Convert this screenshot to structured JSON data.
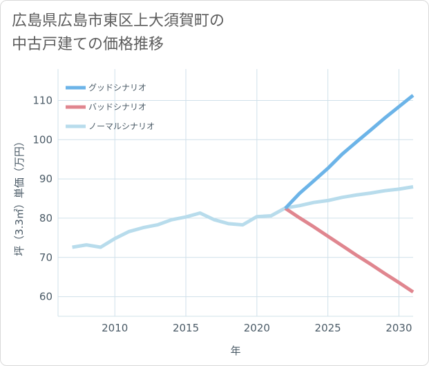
{
  "title_line1": "広島県広島市東区上大須賀町の",
  "title_line2": "中古戸建ての価格推移",
  "chart_data": {
    "type": "line",
    "title": "広島県広島市東区上大須賀町の中古戸建ての価格推移",
    "xlabel": "年",
    "ylabel": "坪（3.3㎡）単価（万円）",
    "xlim": [
      2006,
      2031
    ],
    "ylim": [
      55,
      118
    ],
    "xticks": [
      2010,
      2015,
      2020,
      2025,
      2030
    ],
    "yticks": [
      60,
      70,
      80,
      90,
      100,
      110
    ],
    "grid": true,
    "legend_position": "top-left",
    "series": [
      {
        "name": "グッドシナリオ",
        "color": "#6cb4e8",
        "x": [
          2022,
          2023,
          2024,
          2025,
          2026,
          2027,
          2028,
          2029,
          2030,
          2031
        ],
        "values": [
          82.5,
          86.3,
          89.5,
          92.7,
          96.3,
          99.4,
          102.4,
          105.5,
          108.4,
          111.3
        ]
      },
      {
        "name": "バッドシナリオ",
        "color": "#e0868f",
        "x": [
          2022,
          2023,
          2024,
          2025,
          2026,
          2027,
          2028,
          2029,
          2030,
          2031
        ],
        "values": [
          82.5,
          80.1,
          77.8,
          75.4,
          73.0,
          70.6,
          68.3,
          65.9,
          63.6,
          61.2
        ]
      },
      {
        "name": "ノーマルシナリオ",
        "color": "#b8dcec",
        "x": [
          2007,
          2008,
          2009,
          2010,
          2011,
          2012,
          2013,
          2014,
          2015,
          2016,
          2017,
          2018,
          2019,
          2020,
          2021,
          2022,
          2023,
          2024,
          2025,
          2026,
          2027,
          2028,
          2029,
          2030,
          2031
        ],
        "values": [
          72.6,
          73.2,
          72.6,
          74.8,
          76.6,
          77.6,
          78.3,
          79.6,
          80.3,
          81.3,
          79.6,
          78.6,
          78.3,
          80.4,
          80.6,
          82.6,
          83.2,
          84.0,
          84.5,
          85.3,
          85.9,
          86.4,
          87.0,
          87.4,
          88.0
        ]
      }
    ]
  }
}
